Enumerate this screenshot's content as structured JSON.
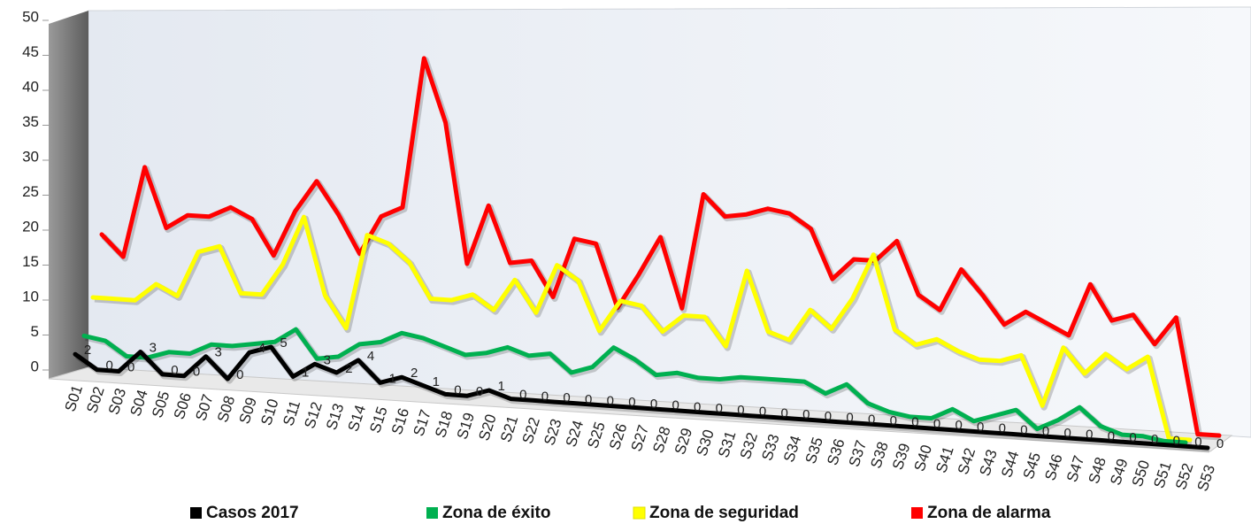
{
  "chart_data": {
    "type": "line",
    "categories": [
      "S01",
      "S02",
      "S03",
      "S04",
      "S05",
      "S06",
      "S07",
      "S08",
      "S09",
      "S10",
      "S11",
      "S12",
      "S13",
      "S14",
      "S15",
      "S16",
      "S17",
      "S18",
      "S19",
      "S20",
      "S21",
      "S22",
      "S23",
      "S24",
      "S25",
      "S26",
      "S27",
      "S28",
      "S29",
      "S30",
      "S31",
      "S32",
      "S33",
      "S34",
      "S35",
      "S36",
      "S37",
      "S38",
      "S39",
      "S40",
      "S41",
      "S42",
      "S43",
      "S44",
      "S45",
      "S46",
      "S47",
      "S48",
      "S49",
      "S50",
      "S51",
      "S52",
      "S53"
    ],
    "series": [
      {
        "name": "Casos 2017",
        "color": "#000000",
        "show_values": true,
        "values": [
          2,
          0,
          0,
          3,
          0,
          0,
          3,
          0,
          4,
          5,
          1,
          3,
          2,
          4,
          1,
          2,
          1,
          0,
          0,
          1,
          0,
          0,
          0,
          0,
          0,
          0,
          0,
          0,
          0,
          0,
          0,
          0,
          0,
          0,
          0,
          0,
          0,
          0,
          0,
          0,
          0,
          0,
          0,
          0,
          0,
          0,
          0,
          0,
          0,
          0,
          0,
          0,
          0
        ]
      },
      {
        "name": "Zona de éxito",
        "color": "#00b050",
        "values": [
          4.5,
          4,
          2,
          2,
          3,
          3,
          4.5,
          4.5,
          5,
          5.5,
          7.5,
          3.5,
          4,
          6,
          6.5,
          8,
          7.5,
          6.5,
          5.5,
          6,
          7,
          6,
          6.5,
          4,
          5,
          8,
          6.5,
          4.5,
          5,
          4.5,
          4.5,
          5,
          5,
          5,
          5,
          3.5,
          5,
          2.5,
          1.5,
          1,
          1,
          2.5,
          1,
          2,
          3,
          0.5,
          2,
          4,
          1.5,
          0.5,
          0.5,
          0,
          0
        ]
      },
      {
        "name": "Zona de seguridad",
        "color": "#ffff00",
        "values": [
          10,
          10,
          10,
          12.5,
          11,
          17.5,
          18.5,
          12,
          12,
          16.5,
          23.5,
          12.5,
          8,
          21.5,
          20.5,
          18,
          13,
          13,
          14,
          12,
          16.5,
          12,
          19,
          17,
          10,
          14.5,
          14,
          10.5,
          13,
          13,
          9,
          20,
          11.5,
          10.5,
          15,
          12.5,
          17,
          23.5,
          13,
          11,
          12,
          10.5,
          9.5,
          9.5,
          10.5,
          3.5,
          12,
          8.5,
          11.5,
          9.5,
          11.5,
          0,
          0
        ]
      },
      {
        "name": "Zona de alarma",
        "color": "#ff0000",
        "values": [
          19,
          16,
          29,
          20.5,
          22.5,
          22.5,
          24,
          22.5,
          17.5,
          24,
          28.5,
          24,
          18.5,
          24,
          25.5,
          47,
          38,
          18,
          26.5,
          18.5,
          19,
          14,
          22.5,
          22,
          13,
          18,
          23.5,
          13.5,
          30,
          27,
          27.5,
          28.5,
          28,
          26,
          19,
          22,
          22,
          25,
          17.5,
          15.5,
          21.5,
          18,
          14,
          16,
          14.5,
          13,
          20.5,
          15.5,
          16.5,
          12.5,
          16.5,
          0,
          0
        ]
      }
    ],
    "ylim": [
      0,
      50
    ],
    "yticks": [
      0,
      5,
      10,
      15,
      20,
      25,
      30,
      35,
      40,
      45,
      50
    ],
    "legend": "bottom",
    "three_d": true
  }
}
